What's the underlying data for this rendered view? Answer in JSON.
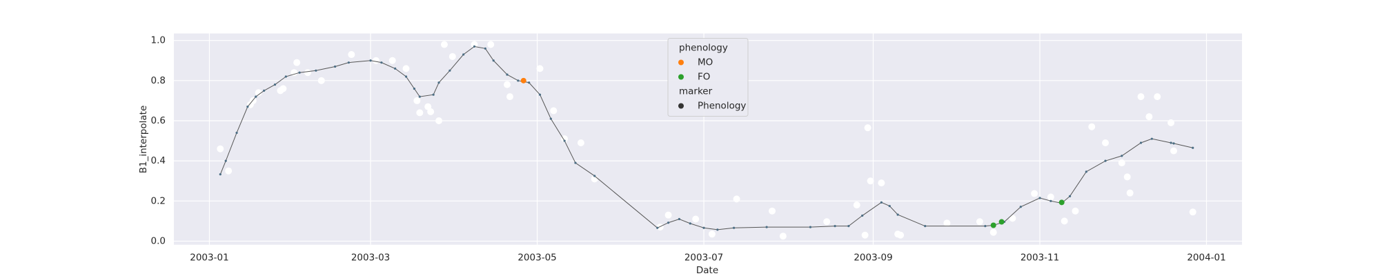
{
  "chart_data": {
    "type": "line",
    "x_label": "Date",
    "y_label": "B1_interpolate",
    "xlim": [
      -13,
      378
    ],
    "ylim": [
      -0.018,
      1.035
    ],
    "xticks": [
      {
        "value": 0,
        "label": "2003-01"
      },
      {
        "value": 59,
        "label": "2003-03"
      },
      {
        "value": 120,
        "label": "2003-05"
      },
      {
        "value": 181,
        "label": "2003-07"
      },
      {
        "value": 243,
        "label": "2003-09"
      },
      {
        "value": 304,
        "label": "2003-11"
      },
      {
        "value": 365,
        "label": "2004-01"
      }
    ],
    "yticks": [
      {
        "value": 0,
        "label": "0.0"
      },
      0.2,
      0.4,
      0.6,
      0.8,
      {
        "value": 1,
        "label": "1.0"
      }
    ],
    "grid": true,
    "line": {
      "color": "#555555",
      "marker_color": "#4c6e84",
      "x": [
        4,
        6,
        10,
        14,
        17,
        20,
        24,
        28,
        33,
        39,
        46,
        51,
        59,
        63,
        68,
        72,
        75,
        77,
        82,
        84,
        88,
        93,
        97,
        101,
        104,
        109,
        113,
        117,
        121,
        125,
        130,
        134,
        141,
        164,
        168,
        172,
        176,
        181,
        186,
        192,
        204,
        220,
        229,
        234,
        239,
        246,
        249,
        252,
        262,
        284,
        287,
        291,
        297,
        304,
        308,
        312,
        315,
        321,
        328,
        334,
        341,
        345,
        352,
        353,
        360
      ],
      "values": [
        0.333,
        0.4,
        0.54,
        0.67,
        0.72,
        0.75,
        0.78,
        0.82,
        0.84,
        0.85,
        0.87,
        0.89,
        0.9,
        0.89,
        0.86,
        0.82,
        0.76,
        0.72,
        0.73,
        0.79,
        0.85,
        0.93,
        0.97,
        0.96,
        0.9,
        0.83,
        0.8,
        0.79,
        0.73,
        0.61,
        0.5,
        0.39,
        0.325,
        0.066,
        0.092,
        0.11,
        0.088,
        0.066,
        0.057,
        0.066,
        0.07,
        0.07,
        0.075,
        0.075,
        0.127,
        0.193,
        0.175,
        0.132,
        0.075,
        0.075,
        0.079,
        0.096,
        0.171,
        0.215,
        0.2,
        0.189,
        0.224,
        0.346,
        0.4,
        0.425,
        0.49,
        0.51,
        0.49,
        0.487,
        0.465
      ]
    },
    "observations": {
      "color": "#ffffff",
      "x": [
        4,
        7,
        15,
        16,
        18,
        26,
        27,
        31,
        32,
        36,
        41,
        52,
        61,
        67,
        72,
        76,
        77,
        80,
        81,
        84,
        86,
        89,
        97,
        103,
        109,
        110,
        121,
        126,
        130,
        136,
        141,
        165,
        168,
        178,
        184,
        193,
        206,
        210,
        226,
        237,
        240,
        241,
        242,
        246,
        252,
        253,
        270,
        282,
        287,
        294,
        302,
        308,
        313,
        317,
        323,
        328,
        334,
        336,
        337,
        341,
        344,
        347,
        352,
        353,
        360
      ],
      "values": [
        0.46,
        0.35,
        0.68,
        0.7,
        0.74,
        0.75,
        0.76,
        0.84,
        0.89,
        0.84,
        0.8,
        0.93,
        0.9,
        0.9,
        0.86,
        0.7,
        0.64,
        0.67,
        0.645,
        0.6,
        0.98,
        0.92,
        0.98,
        0.98,
        0.78,
        0.72,
        0.86,
        0.65,
        0.51,
        0.49,
        0.31,
        0.07,
        0.13,
        0.11,
        0.035,
        0.21,
        0.15,
        0.025,
        0.097,
        0.18,
        0.03,
        0.565,
        0.3,
        0.29,
        0.035,
        0.03,
        0.09,
        0.097,
        0.044,
        0.114,
        0.237,
        0.22,
        0.1,
        0.15,
        0.57,
        0.49,
        0.39,
        0.32,
        0.24,
        0.72,
        0.62,
        0.72,
        0.59,
        0.45,
        0.145
      ]
    },
    "legend_title": "phenology",
    "legend_loc": "upper center",
    "series": [
      {
        "name": "MO",
        "color": "#ff7f0e",
        "x": [
          115
        ],
        "values": [
          0.8
        ]
      },
      {
        "name": "FO",
        "color": "#2ca02c",
        "x": [
          287,
          290,
          312
        ],
        "values": [
          0.079,
          0.096,
          0.193
        ]
      }
    ],
    "marker_legend": {
      "title": "marker",
      "entries": [
        {
          "name": "Phenology",
          "color": "#333333"
        }
      ]
    }
  }
}
